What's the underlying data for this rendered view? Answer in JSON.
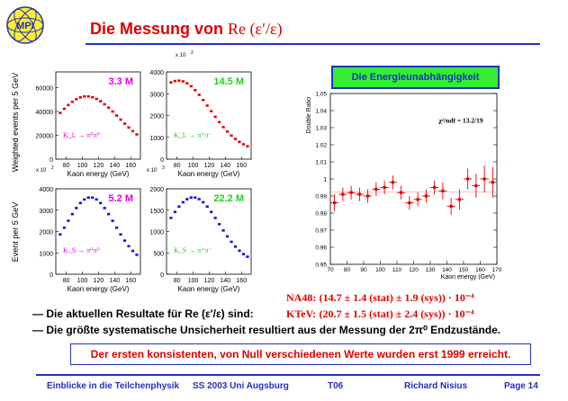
{
  "header": {
    "title_text": "Die Messung von",
    "title_math": "Re (ε′/ε)",
    "logo_text": "MPI"
  },
  "left_plots": {
    "ylabel_top": "Weighted events per 5 GeV",
    "ylabel_bottom": "Event per 5 GeV",
    "xlabel": "Kaon energy (GeV)",
    "x10_top_right": "x 10",
    "x10_exp_2": "2",
    "x10_exp_3": "3",
    "xticks": [
      "80",
      "100",
      "120",
      "140",
      "160"
    ],
    "panels": [
      {
        "id": "kl_pi0pi0",
        "count": "3.3 M",
        "count_color": "#e000e0",
        "process": "K_L → π⁰π⁰",
        "proc_color": "#e000e0",
        "dot_color": "#e00000",
        "yticks": [
          "0",
          "20000",
          "40000",
          "60000"
        ],
        "exp": ""
      },
      {
        "id": "kl_pipi",
        "count": "14.5 M",
        "count_color": "#22cc22",
        "process": "K_L → π⁺π⁻",
        "proc_color": "#22cc22",
        "dot_color": "#e00000",
        "yticks": [
          "0",
          "1000",
          "2000",
          "3000",
          "4000"
        ],
        "exp": "x 10 2"
      },
      {
        "id": "ks_pi0pi0",
        "count": "5.2 M",
        "count_color": "#e000e0",
        "process": "K_S → π⁰π⁰",
        "proc_color": "#e000e0",
        "dot_color": "#1010e0",
        "yticks": [
          "0",
          "1000",
          "2000",
          "3000",
          "4000"
        ],
        "exp": "x 10 2"
      },
      {
        "id": "ks_pipi",
        "count": "22.2 M",
        "count_color": "#22cc22",
        "process": "K_S → π⁺π⁻",
        "proc_color": "#22cc22",
        "dot_color": "#1010e0",
        "yticks": [
          "0",
          "500",
          "1000",
          "1500",
          "2000"
        ],
        "exp": "x 10 3"
      }
    ]
  },
  "chart_data": {
    "type": "scatter",
    "title": "Die Energieunabhängigkeit",
    "annotation": "χ²/ndf = 13.2/19",
    "xlabel": "Kaon energy (GeV)",
    "ylabel": "Double Ratio",
    "xlim": [
      70,
      170
    ],
    "ylim": [
      0.95,
      1.05
    ],
    "xticks": [
      70,
      80,
      90,
      100,
      110,
      120,
      130,
      140,
      150,
      160,
      170
    ],
    "yticks": [
      0.95,
      0.96,
      0.97,
      0.98,
      0.99,
      1.0,
      1.01,
      1.02,
      1.03,
      1.04,
      1.05
    ],
    "x": [
      72.5,
      77.5,
      82.5,
      87.5,
      92.5,
      97.5,
      102.5,
      107.5,
      112.5,
      117.5,
      122.5,
      127.5,
      132.5,
      137.5,
      142.5,
      147.5,
      152.5,
      157.5,
      162.5,
      167.5
    ],
    "y": [
      0.986,
      0.991,
      0.992,
      0.991,
      0.99,
      0.994,
      0.995,
      0.998,
      0.992,
      0.986,
      0.988,
      0.99,
      0.995,
      0.993,
      0.984,
      0.988,
      1.0,
      0.996,
      1.0,
      0.998
    ],
    "yerr": [
      0.005,
      0.004,
      0.004,
      0.004,
      0.004,
      0.004,
      0.004,
      0.004,
      0.004,
      0.004,
      0.004,
      0.004,
      0.004,
      0.005,
      0.005,
      0.006,
      0.006,
      0.007,
      0.008,
      0.009
    ]
  },
  "results": {
    "na48_label": "NA48:",
    "na48_value": "(14.7 ± 1.4 (stat) ± 1.9 (sys)) · 10⁻⁴",
    "line1_text": "— Die aktuellen Resultate für Re (ε′/ε) sind:",
    "ktev_label": "KTeV:",
    "ktev_value": "(20.7 ± 1.5 (stat) ± 2.4 (sys)) · 10⁻⁴",
    "line2_text": "— Die größte systematische Unsicherheit resultiert aus der Messung der 2π⁰ Endzustände."
  },
  "note": "Der ersten konsistenten, von Null verschiedenen Werte wurden erst 1999 erreicht.",
  "footer": {
    "left": "Einblicke in die Teilchenphysik",
    "mid": "SS 2003 Uni Augsburg",
    "code": "T06",
    "author": "Richard Nisius",
    "page": "Page 14"
  }
}
